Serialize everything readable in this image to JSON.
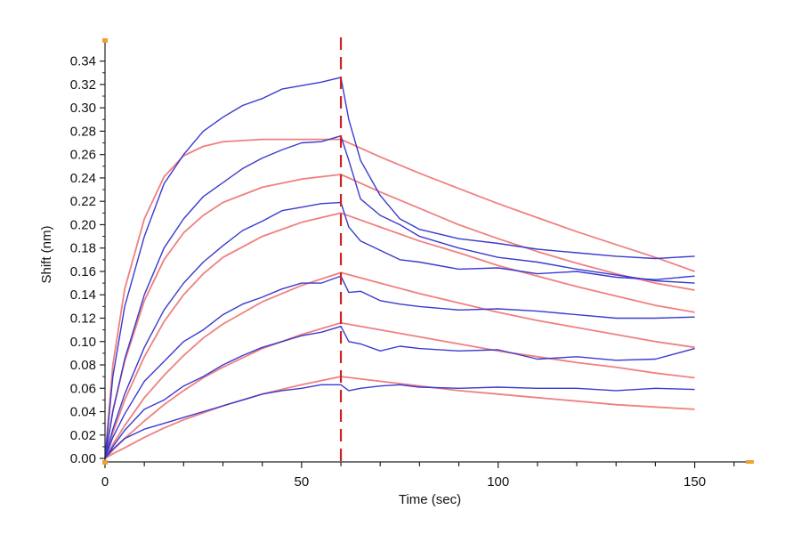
{
  "chart_data": {
    "type": "line",
    "title": "",
    "xlabel": "Time (sec)",
    "ylabel": "Shift (nm)",
    "xlim": [
      0,
      163
    ],
    "ylim": [
      -0.003,
      0.358
    ],
    "x_ticks": [
      0,
      50,
      100,
      150
    ],
    "x_tick_labels": [
      "0",
      "50",
      "100",
      "150"
    ],
    "y_ticks": [
      0.0,
      0.02,
      0.04,
      0.06,
      0.08,
      0.1,
      0.12,
      0.14,
      0.16,
      0.18,
      0.2,
      0.22,
      0.24,
      0.26,
      0.28,
      0.3,
      0.32,
      0.34
    ],
    "y_tick_labels": [
      "0.00",
      "0.02",
      "0.04",
      "0.06",
      "0.08",
      "0.10",
      "0.12",
      "0.14",
      "0.16",
      "0.18",
      "0.20",
      "0.22",
      "0.24",
      "0.26",
      "0.28",
      "0.30",
      "0.32",
      "0.34"
    ],
    "grid": false,
    "legend": "none",
    "association_end_x": 60,
    "colors": {
      "measured": "#3a3ad0",
      "fit": "#f08080",
      "marker_line": "#cc2222",
      "axis": "#222222",
      "corner_marks": "#f0a030"
    },
    "series": [
      {
        "role": "measured",
        "x": [
          0,
          2,
          5,
          10,
          15,
          20,
          25,
          30,
          35,
          40,
          45,
          50,
          55,
          60,
          62,
          65,
          70,
          75,
          80,
          90,
          100,
          110,
          120,
          130,
          140,
          150
        ],
        "y": [
          0,
          0.07,
          0.13,
          0.19,
          0.235,
          0.26,
          0.28,
          0.292,
          0.302,
          0.308,
          0.316,
          0.319,
          0.322,
          0.326,
          0.29,
          0.255,
          0.225,
          0.205,
          0.196,
          0.188,
          0.184,
          0.179,
          0.176,
          0.173,
          0.171,
          0.173
        ]
      },
      {
        "role": "measured",
        "x": [
          0,
          2,
          5,
          10,
          15,
          20,
          25,
          30,
          35,
          40,
          45,
          50,
          55,
          60,
          62,
          65,
          70,
          75,
          80,
          90,
          100,
          110,
          120,
          130,
          140,
          150
        ],
        "y": [
          0,
          0.04,
          0.085,
          0.14,
          0.18,
          0.205,
          0.224,
          0.236,
          0.248,
          0.257,
          0.264,
          0.27,
          0.271,
          0.276,
          0.255,
          0.222,
          0.208,
          0.2,
          0.19,
          0.18,
          0.172,
          0.168,
          0.162,
          0.157,
          0.152,
          0.15
        ]
      },
      {
        "role": "measured",
        "x": [
          0,
          2,
          5,
          10,
          15,
          20,
          25,
          30,
          35,
          40,
          45,
          50,
          55,
          60,
          62,
          65,
          70,
          75,
          80,
          90,
          100,
          110,
          120,
          130,
          140,
          150
        ],
        "y": [
          0,
          0.025,
          0.055,
          0.095,
          0.127,
          0.15,
          0.168,
          0.182,
          0.195,
          0.203,
          0.212,
          0.215,
          0.218,
          0.219,
          0.198,
          0.186,
          0.178,
          0.17,
          0.168,
          0.162,
          0.163,
          0.158,
          0.16,
          0.155,
          0.153,
          0.156
        ]
      },
      {
        "role": "measured",
        "x": [
          0,
          2,
          5,
          10,
          15,
          20,
          25,
          30,
          35,
          40,
          45,
          50,
          55,
          60,
          62,
          65,
          70,
          75,
          80,
          90,
          100,
          110,
          120,
          130,
          140,
          150
        ],
        "y": [
          0,
          0.018,
          0.038,
          0.066,
          0.083,
          0.1,
          0.11,
          0.123,
          0.132,
          0.138,
          0.145,
          0.15,
          0.15,
          0.156,
          0.142,
          0.143,
          0.135,
          0.132,
          0.13,
          0.127,
          0.128,
          0.126,
          0.123,
          0.12,
          0.12,
          0.121
        ]
      },
      {
        "role": "measured",
        "x": [
          0,
          2,
          5,
          10,
          15,
          20,
          25,
          30,
          35,
          40,
          45,
          50,
          55,
          60,
          62,
          65,
          70,
          75,
          80,
          90,
          100,
          110,
          120,
          130,
          140,
          150
        ],
        "y": [
          0,
          0.01,
          0.024,
          0.042,
          0.05,
          0.062,
          0.07,
          0.08,
          0.088,
          0.095,
          0.1,
          0.105,
          0.108,
          0.113,
          0.1,
          0.098,
          0.092,
          0.096,
          0.094,
          0.092,
          0.093,
          0.085,
          0.087,
          0.084,
          0.085,
          0.094
        ]
      },
      {
        "role": "measured",
        "x": [
          0,
          2,
          5,
          10,
          15,
          20,
          25,
          30,
          35,
          40,
          45,
          50,
          55,
          60,
          62,
          65,
          70,
          75,
          80,
          90,
          100,
          110,
          120,
          130,
          140,
          150
        ],
        "y": [
          0,
          0.008,
          0.017,
          0.025,
          0.03,
          0.035,
          0.04,
          0.045,
          0.05,
          0.055,
          0.058,
          0.06,
          0.063,
          0.063,
          0.058,
          0.06,
          0.062,
          0.063,
          0.061,
          0.06,
          0.061,
          0.06,
          0.06,
          0.058,
          0.06,
          0.059
        ]
      },
      {
        "role": "fit",
        "x": [
          0,
          2,
          5,
          10,
          15,
          20,
          25,
          30,
          40,
          50,
          60,
          70,
          80,
          90,
          100,
          110,
          120,
          130,
          140,
          150
        ],
        "y": [
          0,
          0.08,
          0.145,
          0.205,
          0.241,
          0.259,
          0.267,
          0.271,
          0.273,
          0.273,
          0.273,
          0.258,
          0.244,
          0.231,
          0.218,
          0.206,
          0.194,
          0.183,
          0.172,
          0.16
        ]
      },
      {
        "role": "fit",
        "x": [
          0,
          2,
          5,
          10,
          15,
          20,
          25,
          30,
          40,
          50,
          60,
          70,
          80,
          90,
          100,
          110,
          120,
          130,
          140,
          150
        ],
        "y": [
          0,
          0.041,
          0.083,
          0.135,
          0.17,
          0.193,
          0.208,
          0.219,
          0.232,
          0.239,
          0.243,
          0.228,
          0.214,
          0.2,
          0.188,
          0.177,
          0.167,
          0.158,
          0.15,
          0.144
        ]
      },
      {
        "role": "fit",
        "x": [
          0,
          2,
          5,
          10,
          15,
          20,
          25,
          30,
          40,
          50,
          60,
          70,
          80,
          90,
          100,
          110,
          120,
          130,
          140,
          150
        ],
        "y": [
          0,
          0.022,
          0.05,
          0.087,
          0.117,
          0.14,
          0.158,
          0.172,
          0.19,
          0.202,
          0.21,
          0.198,
          0.186,
          0.176,
          0.165,
          0.156,
          0.147,
          0.139,
          0.131,
          0.125
        ]
      },
      {
        "role": "fit",
        "x": [
          0,
          2,
          5,
          10,
          15,
          20,
          25,
          30,
          40,
          50,
          60,
          70,
          80,
          90,
          100,
          110,
          120,
          130,
          140,
          150
        ],
        "y": [
          0,
          0.012,
          0.028,
          0.052,
          0.071,
          0.088,
          0.103,
          0.115,
          0.134,
          0.148,
          0.159,
          0.15,
          0.141,
          0.133,
          0.125,
          0.118,
          0.112,
          0.106,
          0.1,
          0.095
        ]
      },
      {
        "role": "fit",
        "x": [
          0,
          2,
          5,
          10,
          15,
          20,
          25,
          30,
          40,
          50,
          60,
          70,
          80,
          90,
          100,
          110,
          120,
          130,
          140,
          150
        ],
        "y": [
          0,
          0.007,
          0.017,
          0.032,
          0.046,
          0.058,
          0.069,
          0.078,
          0.094,
          0.106,
          0.116,
          0.11,
          0.104,
          0.098,
          0.092,
          0.087,
          0.082,
          0.078,
          0.073,
          0.069
        ]
      },
      {
        "role": "fit",
        "x": [
          0,
          2,
          5,
          10,
          15,
          20,
          25,
          30,
          40,
          50,
          60,
          70,
          80,
          90,
          100,
          110,
          120,
          130,
          140,
          150
        ],
        "y": [
          0,
          0.004,
          0.009,
          0.018,
          0.026,
          0.033,
          0.039,
          0.045,
          0.055,
          0.063,
          0.07,
          0.066,
          0.062,
          0.058,
          0.055,
          0.052,
          0.049,
          0.046,
          0.044,
          0.042
        ]
      }
    ]
  }
}
